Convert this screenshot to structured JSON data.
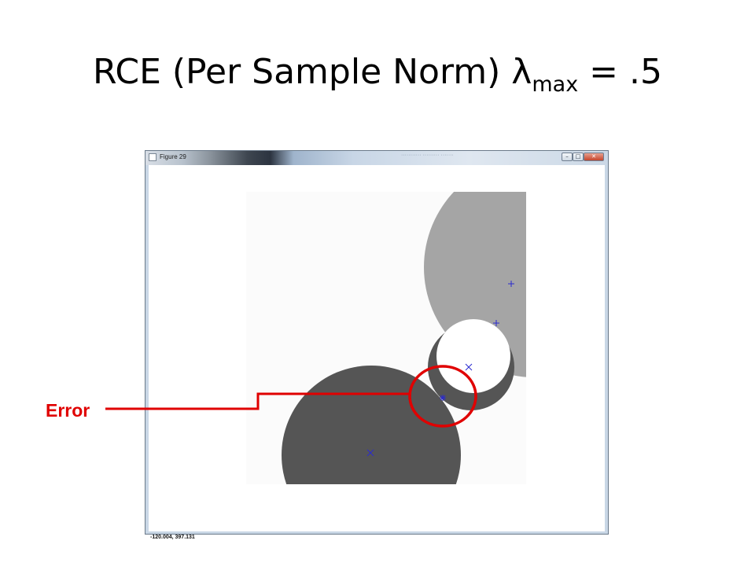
{
  "slide": {
    "title_main": "RCE (Per Sample Norm) λ",
    "title_sub": "max",
    "title_tail": " = .5"
  },
  "figure_window": {
    "title": "Figure 29",
    "blurred_tab_text": "···········  ·········  ·······",
    "minimize_glyph": "–",
    "maximize_glyph": "□",
    "close_glyph": "✕"
  },
  "plot": {
    "coord_readout": "-120.004,  397.131",
    "colors": {
      "background": "#fbfbfb",
      "light_region": "#a5a5a5",
      "dark_region": "#555555",
      "white_region": "#ffffff",
      "marker": "#2a2ad0"
    },
    "markers": [
      {
        "symbol": "plus",
        "label": "plus-marker-top"
      },
      {
        "symbol": "plus",
        "label": "plus-marker-middle"
      },
      {
        "symbol": "x",
        "label": "x-marker-upper"
      },
      {
        "symbol": "star",
        "label": "star-marker-error"
      },
      {
        "symbol": "x",
        "label": "x-marker-lower"
      }
    ]
  },
  "annotation": {
    "label": "Error",
    "color": "#e00000"
  }
}
